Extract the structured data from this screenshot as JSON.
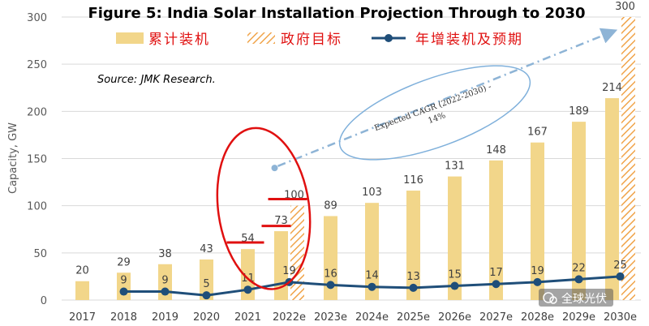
{
  "chart_data": {
    "type": "bar",
    "title": "Figure 5: India Solar Installation Projection Through to 2030",
    "source": "Source: JMK Research.",
    "ylabel": "Capacity, GW",
    "xlabel": "",
    "ylim": [
      0,
      300
    ],
    "yticks": [
      0,
      50,
      100,
      150,
      200,
      250,
      300
    ],
    "categories": [
      "2017",
      "2018",
      "2019",
      "2020",
      "2021",
      "2022e",
      "2023e",
      "2024e",
      "2025e",
      "2026e",
      "2027e",
      "2028e",
      "2029e",
      "2030e"
    ],
    "legend": [
      "累计装机",
      "政府目标",
      "年增装机及预期"
    ],
    "series": [
      {
        "name": "累计装机",
        "kind": "bar",
        "color": "#f2d68a",
        "values": [
          20,
          29,
          38,
          43,
          54,
          73,
          89,
          103,
          116,
          131,
          148,
          167,
          189,
          214
        ]
      },
      {
        "name": "政府目标",
        "kind": "hatched-bar",
        "color": "#f0a44a",
        "values": [
          null,
          null,
          null,
          null,
          null,
          100,
          null,
          null,
          null,
          null,
          null,
          null,
          null,
          300
        ]
      },
      {
        "name": "年增装机及预期",
        "kind": "line",
        "color": "#1f4e79",
        "values": [
          null,
          9,
          9,
          5,
          11,
          19,
          16,
          14,
          13,
          15,
          17,
          19,
          22,
          25
        ]
      }
    ],
    "annotations": {
      "cagr_text_line1": "Expected CAGR (2022-2030) -",
      "cagr_text_line2": "14%",
      "red_ellipse_around": [
        "2021",
        "2022e"
      ],
      "red_marks_at": [
        "2021",
        "2022e",
        "2022e"
      ]
    },
    "grid": "horizontal",
    "legend_position": "top"
  },
  "watermark": {
    "text": "全球光伏",
    "icon": "wechat-icon"
  },
  "colors": {
    "bar": "#f2d68a",
    "hatch": "#f0a44a",
    "line": "#1f4e79",
    "red": "#e01010",
    "grid": "#d9d9d9"
  }
}
